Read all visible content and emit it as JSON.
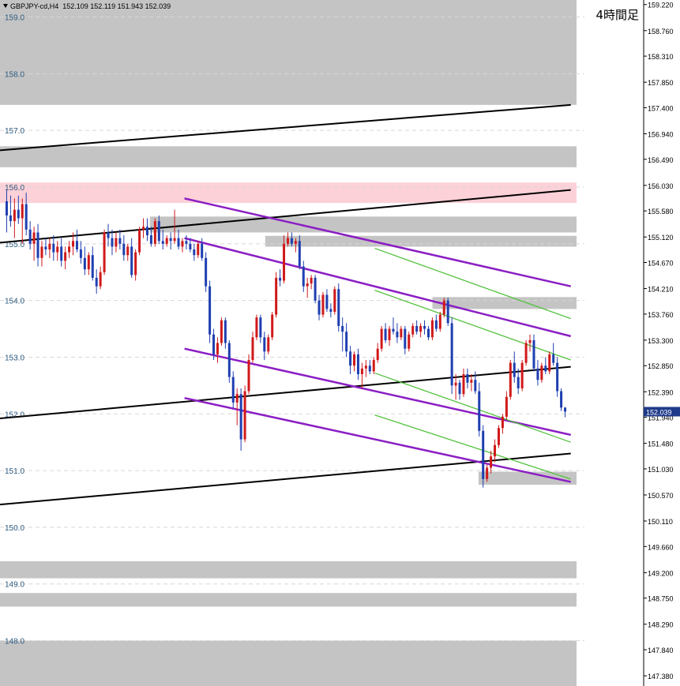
{
  "header": {
    "symbol": "GBPJPY-cd,H4",
    "ohlc": "152.109 152.119 151.943 152.039",
    "timeframe_label": "4時間足"
  },
  "colors": {
    "background": "#ffffff",
    "bull_candle": "#d0191a",
    "bear_candle": "#1f3fb0",
    "zone_gray": "#c4c4c4",
    "zone_pink": "#fdd1d8",
    "trend_black": "#000000",
    "channel_purple": "#8b1ec4",
    "channel_green": "#52c23e",
    "price_tag_bg": "#1e3a8a"
  },
  "chart_data": {
    "type": "candlestick",
    "y_axis": {
      "range": [
        147.2,
        159.3
      ],
      "tick_labels": [
        "159.220",
        "158.760",
        "158.310",
        "157.850",
        "157.400",
        "156.940",
        "156.490",
        "156.030",
        "155.580",
        "155.120",
        "154.670",
        "154.210",
        "153.760",
        "153.300",
        "152.850",
        "152.390",
        "151.940",
        "151.480",
        "151.030",
        "150.570",
        "150.110",
        "149.660",
        "149.200",
        "148.750",
        "148.290",
        "147.840",
        "147.380"
      ],
      "grid_levels": [
        "159.0",
        "158.0",
        "157.0",
        "156.0",
        "155.0",
        "154.0",
        "153.0",
        "152.0",
        "151.0",
        "150.0",
        "149.0",
        "148.0"
      ]
    },
    "current_price": "152.039",
    "zones": [
      {
        "low": 157.45,
        "high": 159.3,
        "color": "gray"
      },
      {
        "low": 156.35,
        "high": 156.72,
        "color": "gray"
      },
      {
        "low": 155.72,
        "high": 156.08,
        "color": "pink"
      },
      {
        "low": 155.2,
        "high": 155.48,
        "color": "gray",
        "from": 0.26
      },
      {
        "low": 154.95,
        "high": 155.14,
        "color": "gray",
        "from": 0.46
      },
      {
        "low": 153.85,
        "high": 154.06,
        "color": "gray",
        "from": 0.75
      },
      {
        "low": 150.75,
        "high": 150.98,
        "color": "gray",
        "from": 0.83
      },
      {
        "low": 149.1,
        "high": 149.4,
        "color": "gray"
      },
      {
        "low": 148.6,
        "high": 148.84,
        "color": "gray"
      },
      {
        "low": 147.2,
        "high": 148.0,
        "color": "gray"
      }
    ],
    "trend_lines": [
      {
        "color": "black",
        "x1": 0.0,
        "y1": 156.65,
        "x2": 0.99,
        "y2": 157.45
      },
      {
        "color": "black",
        "x1": 0.0,
        "y1": 155.02,
        "x2": 0.99,
        "y2": 155.95
      },
      {
        "color": "black",
        "x1": 0.0,
        "y1": 151.92,
        "x2": 0.99,
        "y2": 152.83
      },
      {
        "color": "black",
        "x1": 0.0,
        "y1": 150.4,
        "x2": 0.99,
        "y2": 151.3
      },
      {
        "color": "purple",
        "x1": 0.32,
        "y1": 155.8,
        "x2": 0.99,
        "y2": 154.25
      },
      {
        "color": "purple",
        "x1": 0.32,
        "y1": 155.1,
        "x2": 0.99,
        "y2": 153.37
      },
      {
        "color": "purple",
        "x1": 0.32,
        "y1": 153.15,
        "x2": 0.99,
        "y2": 151.63
      },
      {
        "color": "purple",
        "x1": 0.32,
        "y1": 152.28,
        "x2": 0.99,
        "y2": 150.8
      },
      {
        "color": "green",
        "x1": 0.65,
        "y1": 154.92,
        "x2": 0.99,
        "y2": 153.68
      },
      {
        "color": "green",
        "x1": 0.65,
        "y1": 154.18,
        "x2": 0.99,
        "y2": 152.95
      },
      {
        "color": "green",
        "x1": 0.65,
        "y1": 152.72,
        "x2": 0.99,
        "y2": 151.5
      },
      {
        "color": "green",
        "x1": 0.65,
        "y1": 151.98,
        "x2": 0.99,
        "y2": 150.85
      }
    ],
    "candles": [
      [
        155.75,
        155.95,
        155.2,
        155.5
      ],
      [
        155.5,
        155.85,
        155.3,
        155.4
      ],
      [
        155.4,
        155.8,
        155.1,
        155.6
      ],
      [
        155.6,
        155.85,
        155.35,
        155.45
      ],
      [
        155.45,
        155.8,
        155.0,
        155.7
      ],
      [
        155.7,
        155.9,
        155.15,
        155.25
      ],
      [
        155.25,
        155.4,
        154.9,
        155.0
      ],
      [
        155.0,
        155.3,
        154.7,
        155.2
      ],
      [
        155.2,
        155.35,
        154.6,
        154.75
      ],
      [
        154.75,
        155.05,
        154.6,
        154.95
      ],
      [
        154.95,
        155.1,
        154.8,
        154.9
      ],
      [
        154.9,
        155.1,
        154.75,
        155.0
      ],
      [
        155.0,
        155.15,
        154.7,
        154.85
      ],
      [
        154.85,
        155.05,
        154.7,
        154.95
      ],
      [
        154.95,
        155.1,
        154.6,
        154.7
      ],
      [
        154.7,
        154.95,
        154.55,
        154.85
      ],
      [
        154.85,
        155.05,
        154.75,
        154.95
      ],
      [
        154.95,
        155.2,
        154.8,
        155.05
      ],
      [
        155.05,
        155.25,
        154.85,
        154.9
      ],
      [
        154.9,
        155.05,
        154.65,
        154.75
      ],
      [
        154.75,
        154.95,
        154.45,
        154.55
      ],
      [
        154.55,
        154.85,
        154.45,
        154.8
      ],
      [
        154.8,
        154.95,
        154.35,
        154.4
      ],
      [
        154.4,
        154.55,
        154.12,
        154.25
      ],
      [
        154.25,
        154.6,
        154.2,
        154.5
      ],
      [
        154.5,
        155.25,
        154.45,
        155.2
      ],
      [
        155.2,
        155.35,
        154.95,
        155.1
      ],
      [
        155.1,
        155.25,
        154.8,
        154.95
      ],
      [
        154.95,
        155.2,
        154.85,
        155.1
      ],
      [
        155.1,
        155.25,
        154.9,
        155.0
      ],
      [
        155.0,
        155.15,
        154.7,
        154.8
      ],
      [
        154.8,
        155.0,
        154.7,
        154.95
      ],
      [
        154.95,
        155.1,
        154.4,
        154.45
      ],
      [
        154.45,
        154.9,
        154.35,
        154.85
      ],
      [
        154.85,
        155.3,
        154.8,
        155.25
      ],
      [
        155.25,
        155.45,
        155.1,
        155.3
      ],
      [
        155.3,
        155.45,
        155.05,
        155.15
      ],
      [
        155.15,
        155.3,
        154.95,
        155.0
      ],
      [
        155.0,
        155.45,
        154.95,
        155.4
      ],
      [
        155.4,
        155.5,
        155.0,
        155.05
      ],
      [
        155.05,
        155.25,
        154.9,
        155.0
      ],
      [
        155.0,
        155.15,
        154.95,
        155.1
      ],
      [
        155.1,
        155.2,
        154.9,
        155.05
      ],
      [
        155.05,
        155.6,
        155.0,
        155.1
      ],
      [
        155.1,
        155.25,
        154.9,
        154.95
      ],
      [
        154.95,
        155.1,
        154.85,
        155.05
      ],
      [
        155.05,
        155.15,
        154.9,
        155.0
      ],
      [
        155.0,
        155.1,
        154.85,
        154.9
      ],
      [
        154.9,
        155.0,
        154.7,
        154.8
      ],
      [
        154.8,
        155.05,
        154.75,
        155.0
      ],
      [
        155.0,
        155.1,
        154.7,
        154.75
      ],
      [
        154.75,
        154.85,
        154.15,
        154.25
      ],
      [
        154.25,
        154.35,
        153.25,
        153.4
      ],
      [
        153.4,
        153.5,
        152.95,
        153.05
      ],
      [
        153.05,
        153.35,
        152.9,
        153.25
      ],
      [
        153.25,
        153.7,
        153.2,
        153.65
      ],
      [
        153.65,
        153.7,
        153.15,
        153.25
      ],
      [
        153.25,
        153.3,
        152.55,
        152.65
      ],
      [
        152.65,
        152.75,
        152.1,
        152.2
      ],
      [
        152.2,
        152.45,
        151.8,
        152.35
      ],
      [
        152.35,
        152.45,
        151.35,
        151.55
      ],
      [
        151.55,
        152.5,
        151.5,
        152.4
      ],
      [
        152.4,
        153.05,
        152.35,
        152.95
      ],
      [
        152.95,
        153.45,
        152.9,
        153.35
      ],
      [
        153.35,
        153.75,
        153.3,
        153.7
      ],
      [
        153.7,
        153.75,
        153.25,
        153.35
      ],
      [
        153.35,
        153.45,
        152.95,
        153.1
      ],
      [
        153.1,
        153.4,
        153.05,
        153.35
      ],
      [
        153.35,
        153.8,
        153.3,
        153.75
      ],
      [
        153.75,
        154.5,
        153.7,
        154.4
      ],
      [
        154.4,
        154.55,
        154.25,
        154.35
      ],
      [
        154.35,
        155.15,
        154.3,
        155.0
      ],
      [
        155.0,
        155.2,
        154.95,
        155.1
      ],
      [
        155.1,
        155.2,
        154.95,
        155.0
      ],
      [
        155.0,
        155.1,
        154.85,
        155.05
      ],
      [
        155.05,
        155.15,
        154.55,
        154.6
      ],
      [
        154.6,
        154.7,
        154.15,
        154.25
      ],
      [
        154.25,
        154.4,
        154.05,
        154.3
      ],
      [
        154.3,
        154.45,
        154.2,
        154.4
      ],
      [
        154.4,
        154.45,
        153.95,
        154.0
      ],
      [
        154.0,
        154.1,
        153.65,
        153.75
      ],
      [
        153.75,
        154.15,
        153.7,
        154.1
      ],
      [
        154.1,
        154.2,
        153.8,
        153.85
      ],
      [
        153.85,
        153.95,
        153.7,
        153.8
      ],
      [
        153.8,
        154.25,
        153.75,
        154.2
      ],
      [
        154.2,
        154.3,
        153.45,
        153.55
      ],
      [
        153.55,
        153.7,
        153.1,
        153.45
      ],
      [
        153.45,
        153.6,
        153.0,
        153.1
      ],
      [
        153.1,
        153.2,
        152.7,
        152.85
      ],
      [
        152.85,
        153.1,
        152.75,
        153.05
      ],
      [
        153.05,
        153.15,
        152.6,
        152.7
      ],
      [
        152.7,
        152.9,
        152.45,
        152.8
      ],
      [
        152.8,
        152.95,
        152.65,
        152.85
      ],
      [
        152.85,
        152.95,
        152.7,
        152.75
      ],
      [
        152.75,
        153.0,
        152.7,
        152.95
      ],
      [
        152.95,
        153.25,
        152.9,
        153.15
      ],
      [
        153.15,
        153.55,
        153.1,
        153.5
      ],
      [
        153.5,
        153.6,
        153.25,
        153.3
      ],
      [
        153.3,
        153.55,
        153.2,
        153.5
      ],
      [
        153.5,
        153.7,
        153.4,
        153.45
      ],
      [
        153.45,
        153.6,
        153.25,
        153.35
      ],
      [
        153.35,
        153.55,
        153.3,
        153.5
      ],
      [
        153.5,
        153.55,
        153.05,
        153.15
      ],
      [
        153.15,
        153.45,
        153.1,
        153.4
      ],
      [
        153.4,
        153.6,
        153.35,
        153.55
      ],
      [
        153.55,
        153.65,
        153.4,
        153.45
      ],
      [
        153.45,
        153.6,
        153.35,
        153.55
      ],
      [
        153.55,
        153.65,
        153.4,
        153.5
      ],
      [
        153.5,
        153.55,
        153.3,
        153.35
      ],
      [
        153.35,
        153.7,
        153.3,
        153.65
      ],
      [
        153.65,
        153.75,
        153.45,
        153.5
      ],
      [
        153.5,
        153.8,
        153.45,
        153.75
      ],
      [
        153.75,
        154.05,
        153.7,
        154.0
      ],
      [
        154.0,
        154.05,
        153.55,
        153.6
      ],
      [
        153.6,
        153.7,
        152.35,
        152.5
      ],
      [
        152.5,
        152.7,
        152.25,
        152.55
      ],
      [
        152.55,
        152.6,
        152.25,
        152.35
      ],
      [
        152.35,
        152.8,
        152.3,
        152.7
      ],
      [
        152.7,
        152.8,
        152.45,
        152.55
      ],
      [
        152.55,
        152.7,
        152.4,
        152.6
      ],
      [
        152.6,
        152.75,
        152.35,
        152.4
      ],
      [
        152.4,
        152.55,
        151.6,
        151.7
      ],
      [
        151.7,
        151.8,
        150.7,
        150.85
      ],
      [
        150.85,
        151.1,
        150.8,
        151.05
      ],
      [
        151.05,
        151.35,
        150.95,
        151.25
      ],
      [
        151.25,
        151.55,
        151.15,
        151.45
      ],
      [
        151.45,
        151.8,
        151.4,
        151.75
      ],
      [
        151.75,
        152.0,
        151.65,
        151.95
      ],
      [
        151.95,
        152.4,
        151.9,
        152.3
      ],
      [
        152.3,
        152.95,
        152.25,
        152.9
      ],
      [
        152.9,
        153.1,
        152.55,
        152.65
      ],
      [
        152.65,
        152.8,
        152.35,
        152.45
      ],
      [
        152.45,
        152.95,
        152.4,
        152.9
      ],
      [
        152.9,
        153.3,
        152.85,
        153.25
      ],
      [
        153.25,
        153.4,
        153.1,
        153.3
      ],
      [
        153.3,
        153.4,
        152.75,
        152.8
      ],
      [
        152.8,
        152.95,
        152.5,
        152.6
      ],
      [
        152.6,
        152.9,
        152.55,
        152.85
      ],
      [
        152.85,
        153.0,
        152.7,
        152.75
      ],
      [
        152.75,
        153.1,
        152.7,
        153.05
      ],
      [
        153.05,
        153.25,
        152.85,
        152.9
      ],
      [
        152.9,
        153.0,
        152.3,
        152.4
      ],
      [
        152.4,
        152.45,
        152.05,
        152.11
      ],
      [
        152.11,
        152.12,
        151.94,
        152.04
      ]
    ]
  }
}
